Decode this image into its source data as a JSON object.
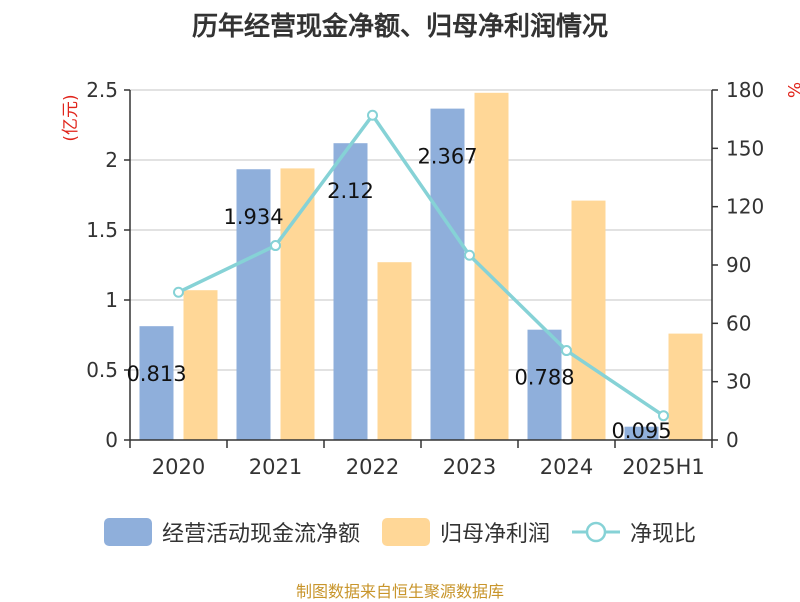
{
  "title": "历年经营现金净额、归母净利润情况",
  "source_note": "制图数据来自恒生聚源数据库",
  "colors": {
    "cash_flow": "#8fafdb",
    "net_profit": "#ffd797",
    "ratio": "#86d2d6",
    "axis_unit": "#e0241b",
    "source_note": "#c8952b"
  },
  "chart_data": {
    "type": "bar",
    "title": "历年经营现金净额、归母净利润情况",
    "categories": [
      "2020",
      "2021",
      "2022",
      "2023",
      "2024",
      "2025H1"
    ],
    "series": [
      {
        "name": "经营活动现金流净额",
        "type": "bar",
        "axis": "left",
        "values": [
          0.813,
          1.934,
          2.12,
          2.367,
          0.788,
          0.095
        ],
        "labels": [
          "0.813",
          "1.934",
          "2.12",
          "2.367",
          "0.788",
          "0.095"
        ]
      },
      {
        "name": "归母净利润",
        "type": "bar",
        "axis": "left",
        "values": [
          1.07,
          1.94,
          1.27,
          2.48,
          1.71,
          0.76
        ]
      },
      {
        "name": "净现比",
        "type": "line",
        "axis": "right",
        "values": [
          76,
          100,
          167,
          95,
          46,
          12.5
        ]
      }
    ],
    "y_left": {
      "unit_label": "(亿元)",
      "range": [
        0,
        2.5
      ],
      "ticks": [
        "0",
        "0.5",
        "1",
        "1.5",
        "2",
        "2.5"
      ]
    },
    "y_right": {
      "unit_label": "%",
      "range": [
        0,
        180
      ],
      "ticks": [
        "0",
        "30",
        "60",
        "90",
        "120",
        "150",
        "180"
      ]
    },
    "grid": true,
    "legend_position": "bottom"
  }
}
